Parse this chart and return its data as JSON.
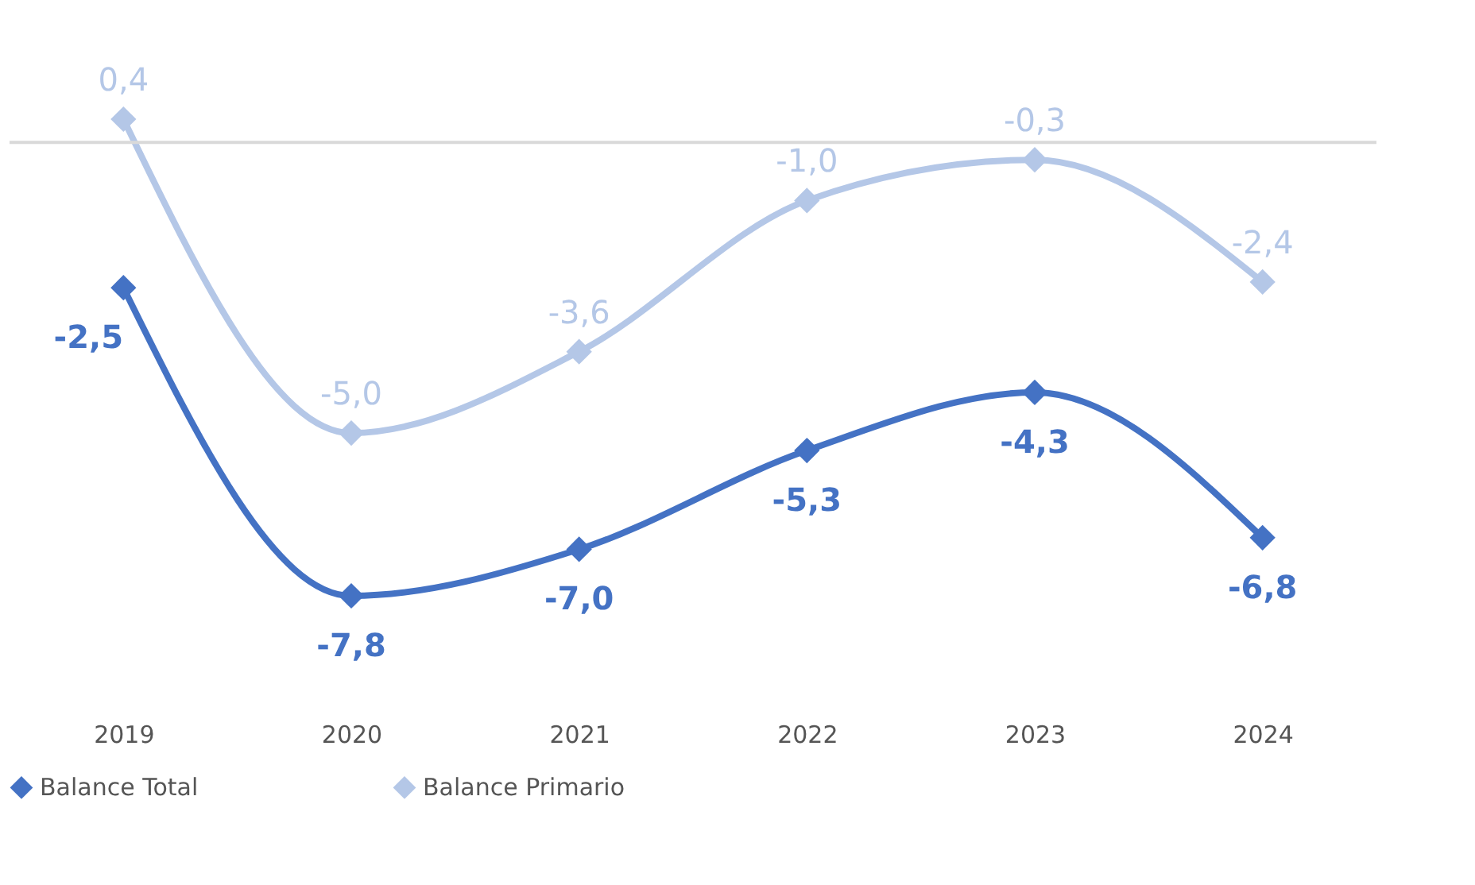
{
  "chart_data": {
    "type": "line",
    "categories": [
      "2019",
      "2020",
      "2021",
      "2022",
      "2023",
      "2024"
    ],
    "series": [
      {
        "name": "Balance Total",
        "color": "#4472c4",
        "values": [
          -2.5,
          -7.8,
          -7.0,
          -5.3,
          -4.3,
          -6.8
        ],
        "value_labels": [
          "-2,5",
          "-7,8",
          "-7,0",
          "-5,3",
          "-4,3",
          "-6,8"
        ]
      },
      {
        "name": "Balance Primario",
        "color": "#b4c7e7",
        "values": [
          0.4,
          -5.0,
          -3.6,
          -1.0,
          -0.3,
          -2.4
        ],
        "value_labels": [
          "0,4",
          "-5,0",
          "-3,6",
          "-1,0",
          "-0,3",
          "-2,4"
        ]
      }
    ],
    "ref_lines": [
      {
        "axis": "y",
        "value": 0,
        "color": "#d9d9d9"
      }
    ],
    "marker": "diamond",
    "line_style": "solid",
    "legend": "bottom",
    "grid": false,
    "tick_labels": "x"
  }
}
